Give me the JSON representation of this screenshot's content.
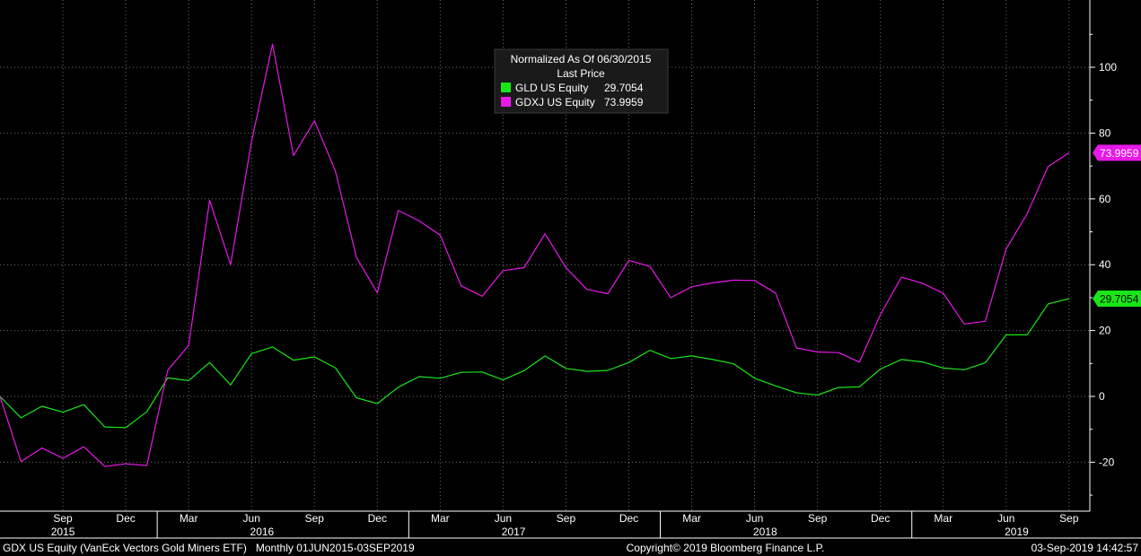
{
  "footer": {
    "security": "GDX US Equity (VanEck Vectors Gold Miners ETF)   Monthly 01JUN2015-03SEP2019",
    "copyright": "Copyright© 2019 Bloomberg Finance L.P.",
    "timestamp": "03-Sep-2019 14:42:57"
  },
  "colors": {
    "background": "#000000",
    "grid": "#6e6e6e",
    "axis_text": "#ffffff",
    "gld": "#19e619",
    "gdxj": "#e619e6"
  },
  "chart_data": {
    "type": "line",
    "legend": {
      "title": "Normalized As Of 06/30/2015",
      "subtitle": "Last Price",
      "entries": [
        {
          "label": "GLD US Equity",
          "value": "29.7054"
        },
        {
          "label": "GDXJ US Equity",
          "value": "73.9959"
        }
      ],
      "placement": "top-center"
    },
    "x": [
      "2015-06",
      "2015-07",
      "2015-08",
      "2015-09",
      "2015-10",
      "2015-11",
      "2015-12",
      "2016-01",
      "2016-02",
      "2016-03",
      "2016-04",
      "2016-05",
      "2016-06",
      "2016-07",
      "2016-08",
      "2016-09",
      "2016-10",
      "2016-11",
      "2016-12",
      "2017-01",
      "2017-02",
      "2017-03",
      "2017-04",
      "2017-05",
      "2017-06",
      "2017-07",
      "2017-08",
      "2017-09",
      "2017-10",
      "2017-11",
      "2017-12",
      "2018-01",
      "2018-02",
      "2018-03",
      "2018-04",
      "2018-05",
      "2018-06",
      "2018-07",
      "2018-08",
      "2018-09",
      "2018-10",
      "2018-11",
      "2018-12",
      "2019-01",
      "2019-02",
      "2019-03",
      "2019-04",
      "2019-05",
      "2019-06",
      "2019-07",
      "2019-08",
      "2019-09"
    ],
    "series": [
      {
        "name": "GLD US Equity",
        "color": "#19e619",
        "last_label": "29.7054",
        "values": [
          0,
          -6.5,
          -3,
          -4.8,
          -2.5,
          -9.3,
          -9.5,
          -4.7,
          5.6,
          4.8,
          10.3,
          3.5,
          13,
          15,
          11,
          12,
          8.7,
          -0.4,
          -2.2,
          2.8,
          6,
          5.5,
          7.3,
          7.4,
          5,
          7.8,
          12.3,
          8.5,
          7.6,
          7.9,
          10.3,
          14,
          11.5,
          12.3,
          11.2,
          9.9,
          5.5,
          3.2,
          1.1,
          0.4,
          2.7,
          2.9,
          8.3,
          11.2,
          10.5,
          8.6,
          8.1,
          10.2,
          18.7,
          18.7,
          28.1,
          29.7054
        ]
      },
      {
        "name": "GDXJ US Equity",
        "color": "#e619e6",
        "last_label": "73.9959",
        "values": [
          0,
          -19.8,
          -15.7,
          -18.8,
          -15.3,
          -21.3,
          -20.5,
          -21,
          7.9,
          15.5,
          59.6,
          40,
          77.5,
          107,
          73.2,
          83.7,
          68.5,
          42.3,
          31.5,
          56.5,
          53.3,
          49,
          33.6,
          30.4,
          38.2,
          39.1,
          49.4,
          39.1,
          32.5,
          31.2,
          41.3,
          39.5,
          30,
          33.3,
          34.5,
          35.3,
          35.2,
          31.4,
          14.7,
          13.5,
          13.3,
          10.4,
          24.8,
          36.2,
          34.4,
          31.3,
          22,
          22.8,
          44.8,
          55.5,
          69.8,
          73.9959
        ]
      }
    ],
    "ylim": [
      -33,
      120
    ],
    "yticks": [
      -20,
      0,
      20,
      40,
      60,
      80,
      100
    ],
    "xtick_months": [
      "Sep",
      "Dec",
      "Mar",
      "Jun",
      "Sep",
      "Dec",
      "Mar",
      "Jun",
      "Sep",
      "Dec",
      "Mar",
      "Jun",
      "Sep",
      "Dec",
      "Mar",
      "Jun",
      "Sep"
    ],
    "xtick_index": [
      3,
      6,
      9,
      12,
      15,
      18,
      21,
      24,
      27,
      30,
      33,
      36,
      39,
      42,
      45,
      48,
      51
    ],
    "year_labels": [
      {
        "year": "2015",
        "index": 3
      },
      {
        "year": "2016",
        "index": 12.5
      },
      {
        "year": "2017",
        "index": 24.5
      },
      {
        "year": "2018",
        "index": 36.5
      },
      {
        "year": "2019",
        "index": 48.5
      }
    ],
    "year_dividers": [
      7.5,
      19.5,
      31.5,
      43.5
    ],
    "grid": true,
    "y_axis_side": "right"
  }
}
